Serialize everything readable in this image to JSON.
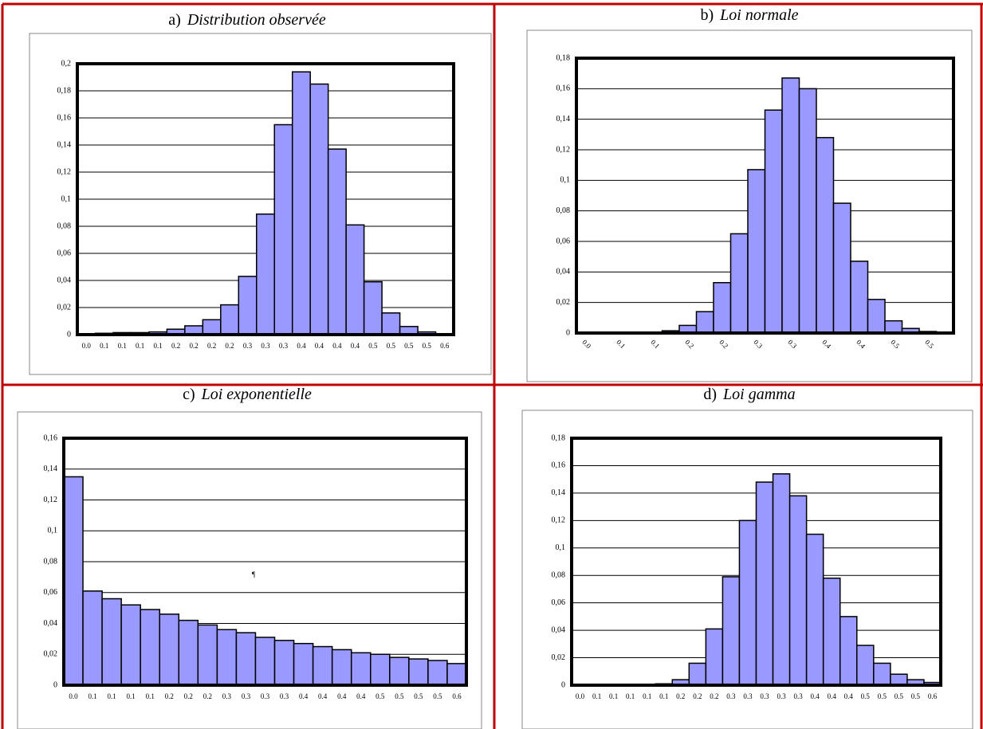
{
  "chart_data": [
    {
      "type": "bar",
      "panel_label": "a)",
      "title": "Distribution observée",
      "categories": [
        "0.0",
        "0.1",
        "0.1",
        "0.1",
        "0.1",
        "0.2",
        "0.2",
        "0.2",
        "0.2",
        "0.3",
        "0.3",
        "0.3",
        "0.4",
        "0.4",
        "0.4",
        "0.4",
        "0.5",
        "0.5",
        "0.5",
        "0.5",
        "0.6"
      ],
      "values": [
        0.0005,
        0.001,
        0.0015,
        0.0015,
        0.002,
        0.004,
        0.0065,
        0.011,
        0.022,
        0.043,
        0.089,
        0.155,
        0.194,
        0.185,
        0.137,
        0.081,
        0.039,
        0.016,
        0.006,
        0.002,
        0.0005
      ],
      "color": "#9999ff",
      "ylim": [
        0,
        0.2
      ],
      "yticks": [
        0,
        {
          "value": 0.02,
          "label": "0,02"
        },
        {
          "value": 0.04,
          "label": "0,04"
        },
        {
          "value": 0.06,
          "label": "0,06"
        },
        {
          "value": 0.08,
          "label": "0,08"
        },
        {
          "value": 0.1,
          "label": "0,1"
        },
        {
          "value": 0.12,
          "label": "0,12"
        },
        {
          "value": 0.14,
          "label": "0,14"
        },
        {
          "value": 0.16,
          "label": "0,16"
        },
        {
          "value": 0.18,
          "label": "0,18"
        },
        {
          "value": 0.2,
          "label": "0,2"
        }
      ],
      "grid": true
    },
    {
      "type": "bar",
      "panel_label": "b)",
      "title": "Loi normale",
      "categories": [
        "0.0",
        null,
        "0.1",
        null,
        "0.1",
        null,
        "0.2",
        null,
        "0.2",
        null,
        "0.3",
        null,
        "0.3",
        null,
        "0.4",
        null,
        "0.4",
        null,
        "0.5",
        null,
        "0.5",
        null
      ],
      "values": [
        0,
        0,
        0,
        0,
        0.0003,
        0.0015,
        0.005,
        0.014,
        0.033,
        0.065,
        0.107,
        0.146,
        0.167,
        0.16,
        0.128,
        0.085,
        0.047,
        0.022,
        0.008,
        0.003,
        0.001,
        0.0003
      ],
      "color": "#9999ff",
      "ylim": [
        0,
        0.18
      ],
      "yticks": [
        0,
        {
          "value": 0.02,
          "label": "0,02"
        },
        {
          "value": 0.04,
          "label": "0,04"
        },
        {
          "value": 0.06,
          "label": "0,06"
        },
        {
          "value": 0.08,
          "label": "0,08"
        },
        {
          "value": 0.1,
          "label": "0,1"
        },
        {
          "value": 0.12,
          "label": "0,12"
        },
        {
          "value": 0.14,
          "label": "0,14"
        },
        {
          "value": 0.16,
          "label": "0,16"
        },
        {
          "value": 0.18,
          "label": "0,18"
        }
      ],
      "grid": true
    },
    {
      "type": "bar",
      "panel_label": "c)",
      "title": "Loi exponentielle",
      "categories": [
        "0.0",
        "0.1",
        "0.1",
        "0.1",
        "0.1",
        "0.2",
        "0.2",
        "0.2",
        "0.3",
        "0.3",
        "0.3",
        "0.3",
        "0.4",
        "0.4",
        "0.4",
        "0.4",
        "0.5",
        "0.5",
        "0.5",
        "0.5",
        "0.6"
      ],
      "values": [
        0.135,
        0.061,
        0.056,
        0.052,
        0.049,
        0.046,
        0.042,
        0.039,
        0.036,
        0.034,
        0.031,
        0.029,
        0.027,
        0.025,
        0.023,
        0.021,
        0.02,
        0.018,
        0.017,
        0.016,
        0.014
      ],
      "color": "#9999ff",
      "ylim": [
        0,
        0.16
      ],
      "yticks": [
        0,
        {
          "value": 0.02,
          "label": "0,02"
        },
        {
          "value": 0.04,
          "label": "0,04"
        },
        {
          "value": 0.06,
          "label": "0,06"
        },
        {
          "value": 0.08,
          "label": "0,08"
        },
        {
          "value": 0.1,
          "label": "0,1"
        },
        {
          "value": 0.12,
          "label": "0,12"
        },
        {
          "value": 0.14,
          "label": "0,14"
        },
        {
          "value": 0.16,
          "label": "0,16"
        }
      ],
      "grid": true,
      "annotation": "¶"
    },
    {
      "type": "bar",
      "panel_label": "d)",
      "title": "Loi gamma",
      "categories": [
        "0.0",
        "0.1",
        "0.1",
        "0.1",
        "0.1",
        "0.1",
        "0.2",
        "0.2",
        "0.2",
        "0.3",
        "0.3",
        "0.3",
        "0.3",
        "0.3",
        "0.4",
        "0.4",
        "0.4",
        "0.5",
        "0.5",
        "0.5",
        "0.5",
        "0.6"
      ],
      "values": [
        0,
        0,
        0,
        0,
        0,
        0.001,
        0.004,
        0.016,
        0.041,
        0.079,
        0.12,
        0.148,
        0.154,
        0.138,
        0.11,
        0.078,
        0.05,
        0.029,
        0.016,
        0.008,
        0.004,
        0.002
      ],
      "color": "#9999ff",
      "ylim": [
        0,
        0.18
      ],
      "yticks": [
        0,
        {
          "value": 0.02,
          "label": "0,02"
        },
        {
          "value": 0.04,
          "label": "0,04"
        },
        {
          "value": 0.06,
          "label": "0,06"
        },
        {
          "value": 0.08,
          "label": "0,08"
        },
        {
          "value": 0.1,
          "label": "0,1"
        },
        {
          "value": 0.12,
          "label": "0,12"
        },
        {
          "value": 0.14,
          "label": "0,14"
        },
        {
          "value": 0.16,
          "label": "0,16"
        },
        {
          "value": 0.18,
          "label": "0,18"
        }
      ],
      "grid": true
    }
  ]
}
